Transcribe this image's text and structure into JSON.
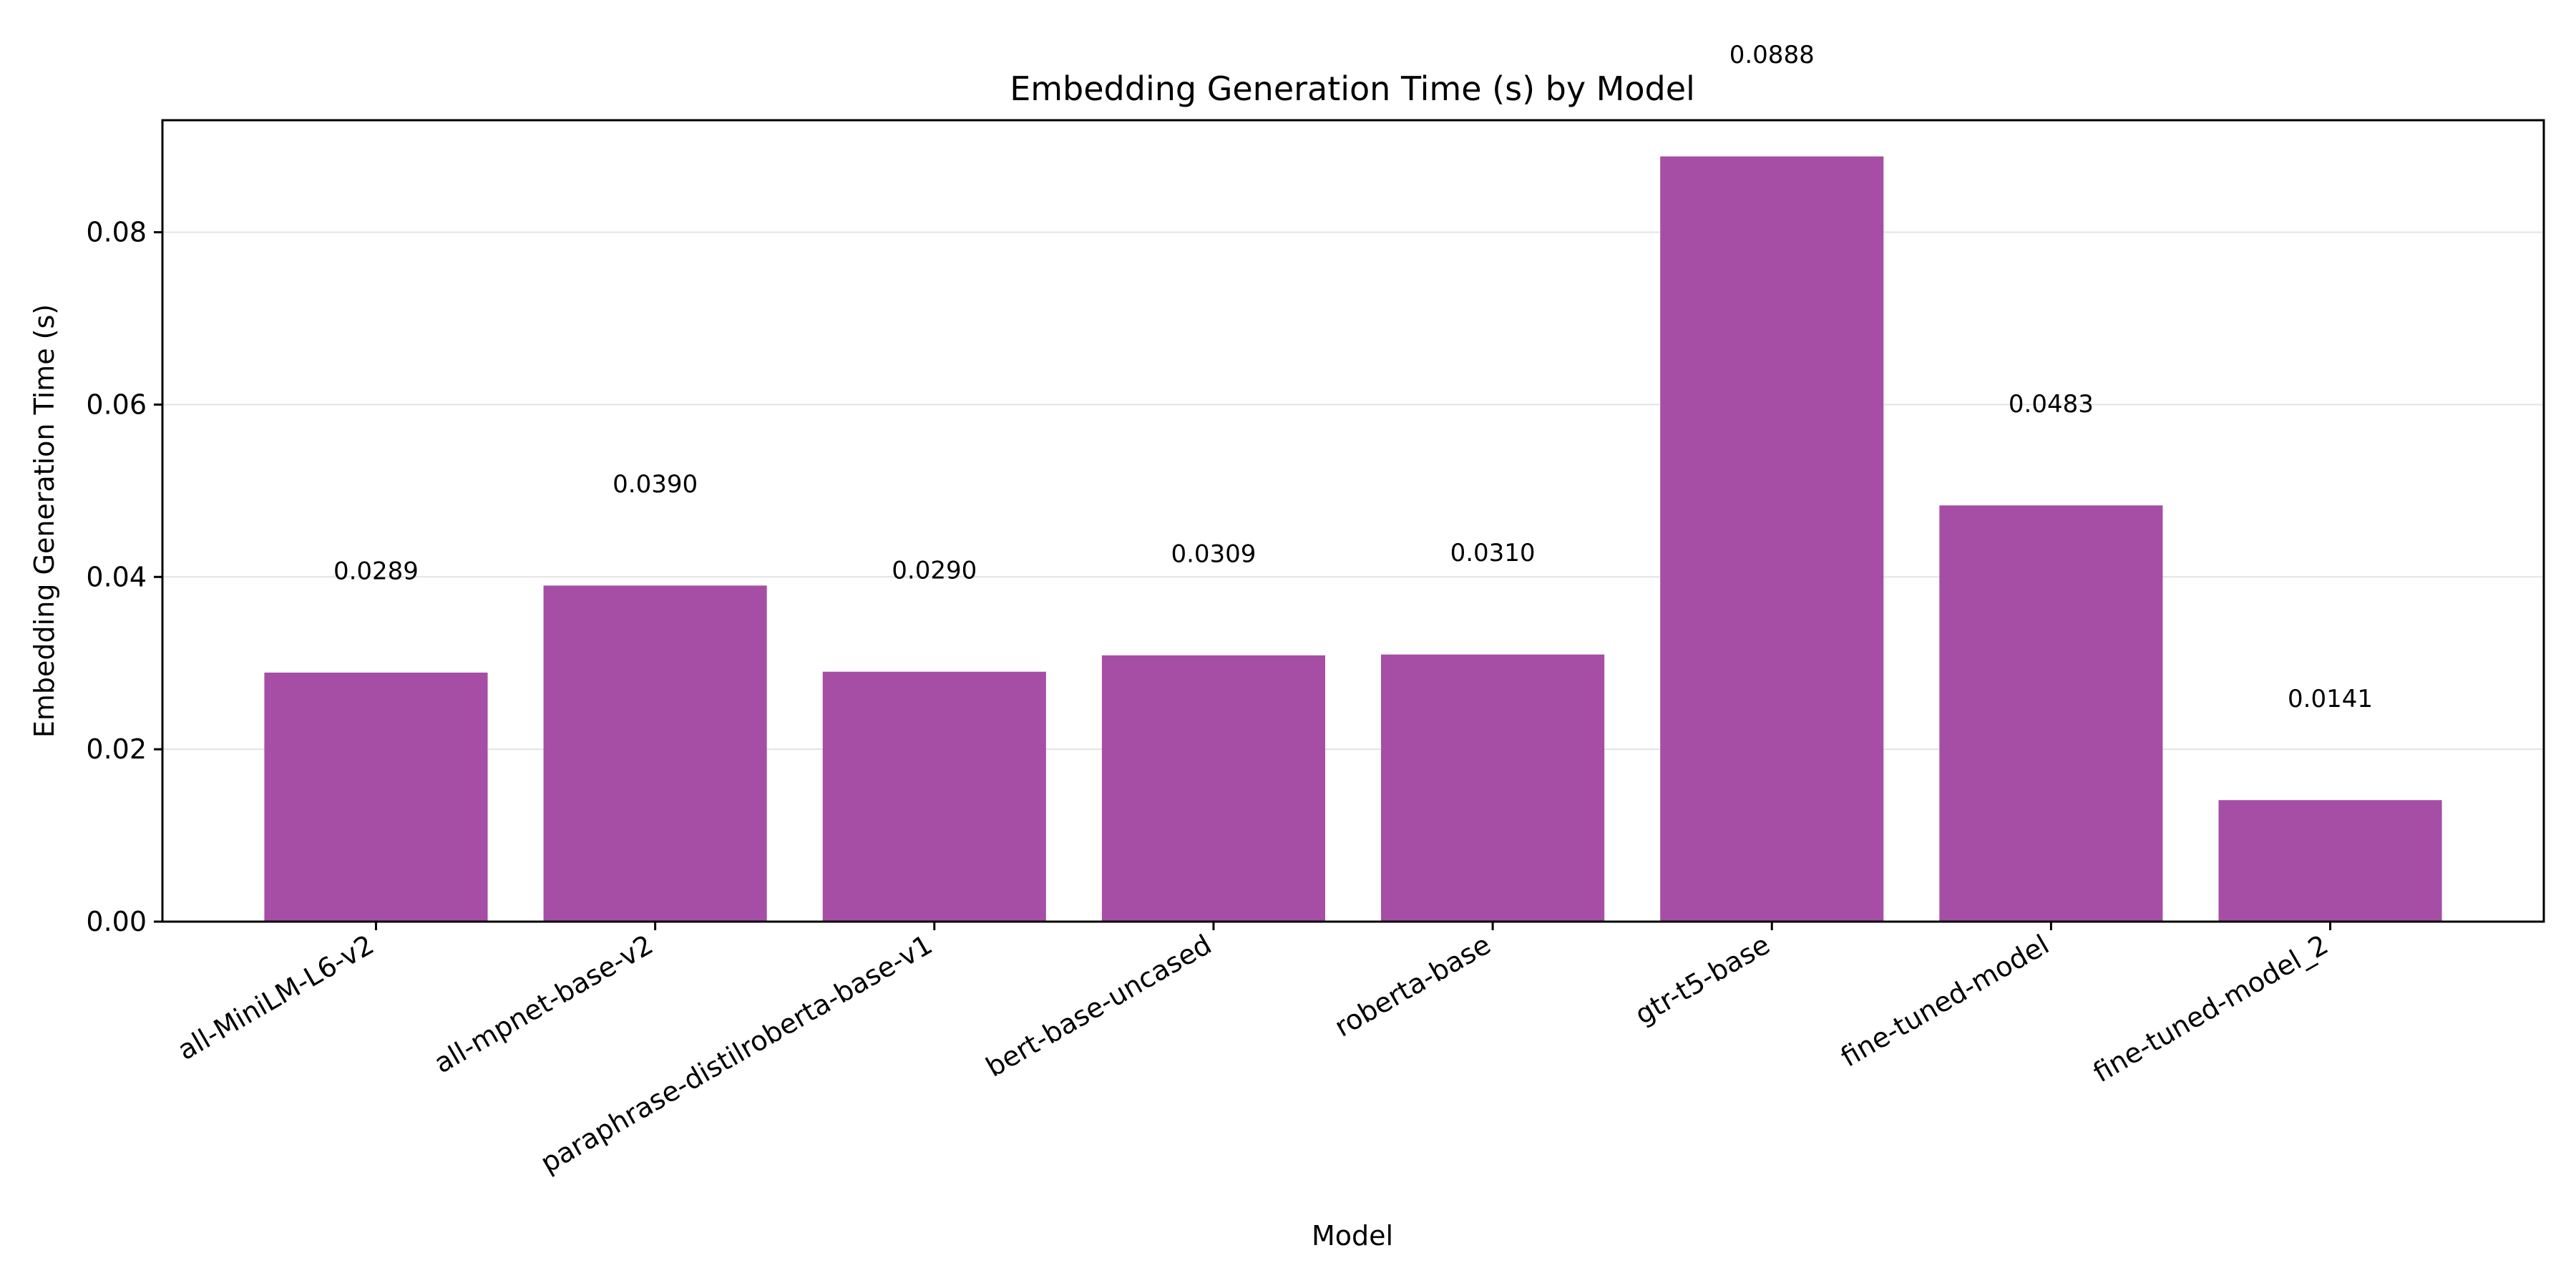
{
  "chart_data": {
    "type": "bar",
    "title": "Embedding Generation Time (s) by Model",
    "xlabel": "Model",
    "ylabel": "Embedding Generation Time (s)",
    "categories": [
      "all-MiniLM-L6-v2",
      "all-mpnet-base-v2",
      "paraphrase-distilroberta-base-v1",
      "bert-base-uncased",
      "roberta-base",
      "gtr-t5-base",
      "fine-tuned-model",
      "fine-tuned-model_2"
    ],
    "values": [
      0.0289,
      0.039,
      0.029,
      0.0309,
      0.031,
      0.0888,
      0.0483,
      0.0141
    ],
    "value_labels": [
      "0.0289",
      "0.0390",
      "0.0290",
      "0.0309",
      "0.0310",
      "0.0888",
      "0.0483",
      "0.0141"
    ],
    "ylim": [
      0,
      0.093
    ],
    "yticks": [
      0.0,
      0.02,
      0.04,
      0.06,
      0.08
    ],
    "ytick_labels": [
      "0.00",
      "0.02",
      "0.04",
      "0.06",
      "0.08"
    ],
    "grid": "y",
    "bar_color": "#a64ea6"
  }
}
